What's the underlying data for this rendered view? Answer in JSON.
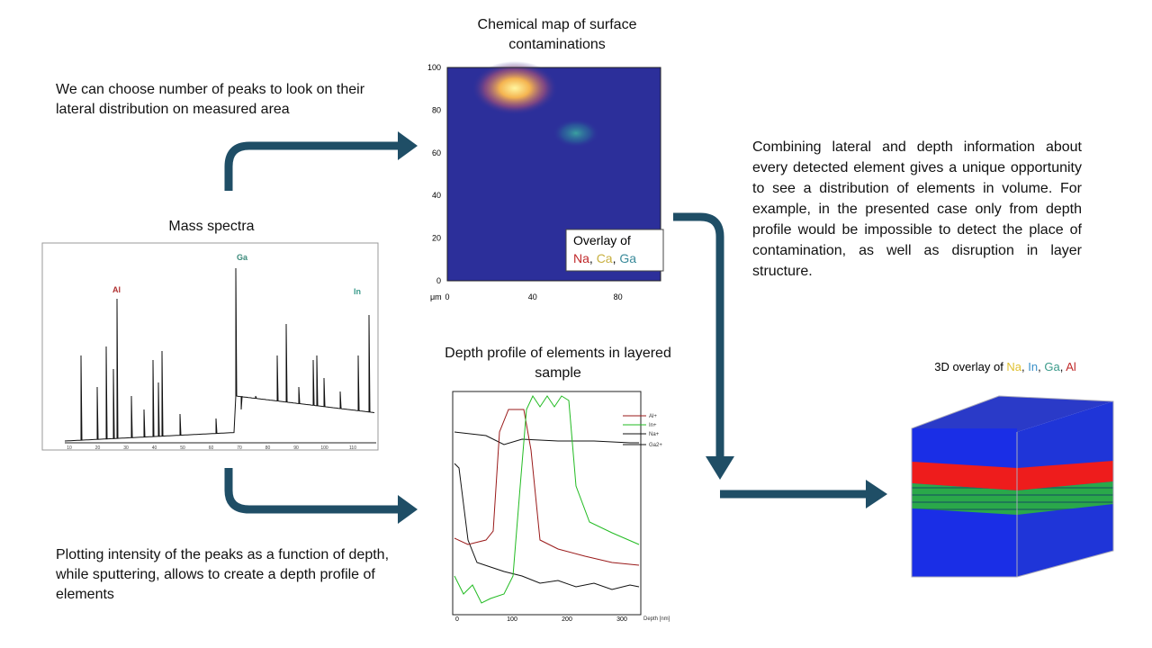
{
  "notes": {
    "peaks": "We can choose number of peaks to look on their lateral distribution on measured area",
    "depth": "Plotting intensity of the peaks as a function of depth, while sputtering, allows to create a depth profile of elements",
    "combining": "Combining lateral and depth information about every detected element gives a unique opportunity to see a distribution of elements in volume. For example, in the presented case only from depth profile would be impossible to detect the place of contamination, as well as disruption in layer structure."
  },
  "separator": ", ",
  "mass_spectra": {
    "title": "Mass spectra",
    "peaks": [
      "Al",
      "Ga",
      "In"
    ],
    "x_ticks": [
      "10",
      "20",
      "30",
      "40",
      "50",
      "60",
      "70",
      "80",
      "90",
      "100",
      "110"
    ]
  },
  "chemical_map": {
    "title": "Chemical map of surface contaminations",
    "y_ticks": [
      "0",
      "20",
      "40",
      "60",
      "80",
      "100"
    ],
    "x_ticks": [
      "0",
      "40",
      "80"
    ],
    "unit": "μm",
    "overlay_label": "Overlay of",
    "elements": [
      "Na",
      "Ca",
      "Ga"
    ]
  },
  "depth_profile": {
    "title": "Depth profile of elements in layered sample",
    "legend": [
      "Al+",
      "In+",
      "Na+",
      "Ga2+"
    ],
    "x_ticks": [
      "0",
      "100",
      "200",
      "300"
    ],
    "x_label": "Depth [nm]"
  },
  "volume_3d": {
    "title": "3D overlay of",
    "elements": [
      "Na",
      "In",
      "Ga",
      "Al"
    ]
  }
}
